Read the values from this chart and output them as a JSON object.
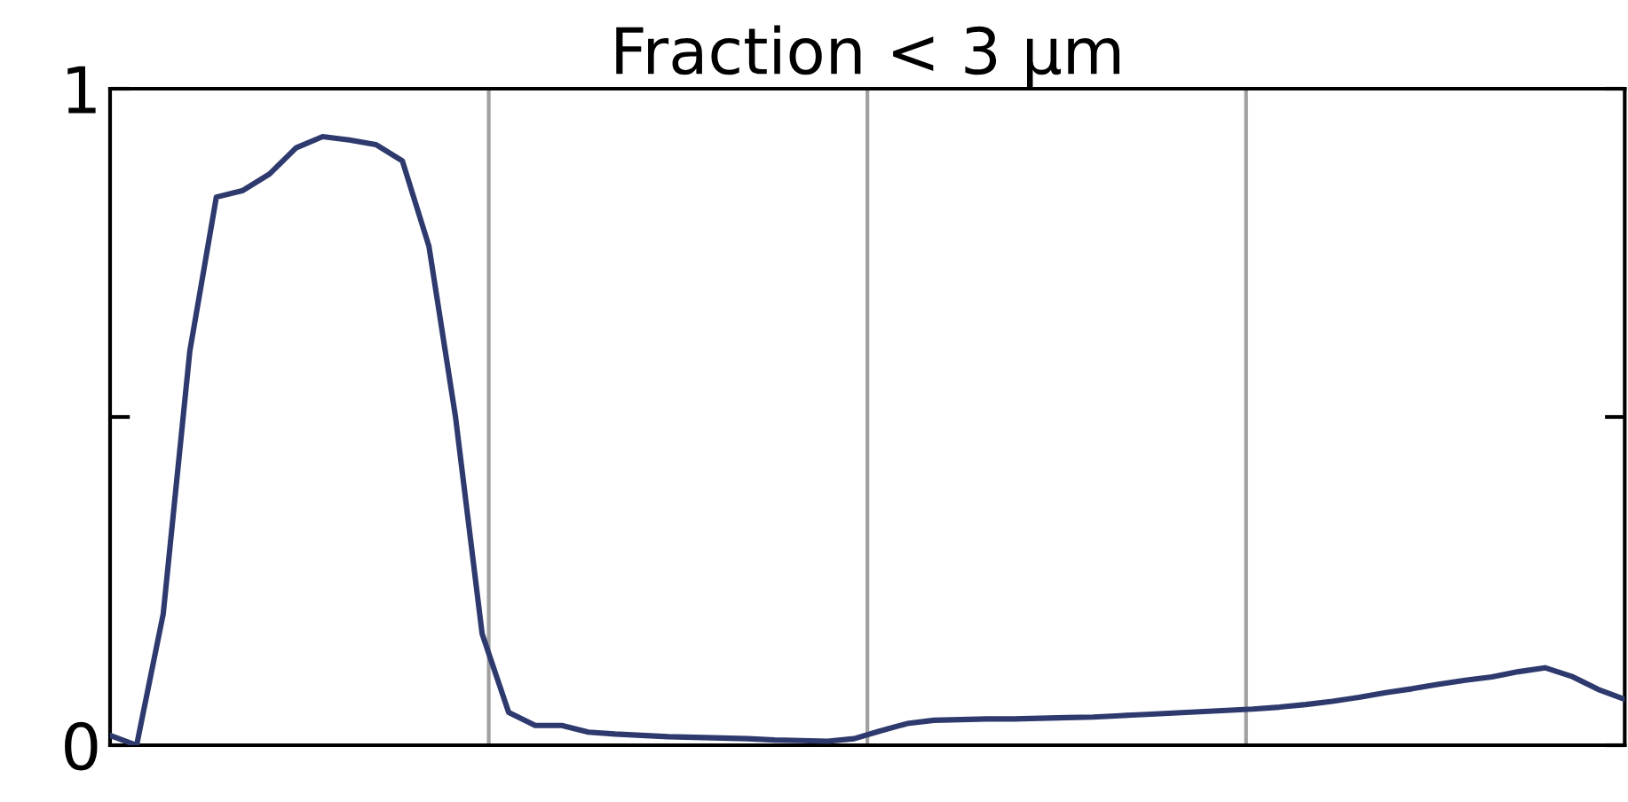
{
  "chart_data": {
    "type": "line",
    "title": "Fraction < 3 µm",
    "categories": [
      null,
      null,
      null,
      null,
      null,
      null,
      null,
      null,
      null,
      null,
      null,
      null,
      null,
      null,
      null,
      null,
      null,
      null,
      null,
      null,
      null,
      null,
      null,
      null,
      null,
      null,
      null,
      null,
      null,
      null,
      null,
      null,
      null,
      null,
      null,
      null,
      null,
      null,
      null,
      null,
      null,
      null,
      null,
      null,
      null,
      null,
      null,
      null,
      null,
      null,
      null,
      null,
      null,
      null,
      null,
      null,
      null,
      null
    ],
    "series": [
      {
        "color": "#2e3a6e",
        "values": [
          0.015,
          0.0,
          0.2,
          0.6,
          0.835,
          0.845,
          0.87,
          0.91,
          0.927,
          0.922,
          0.915,
          0.89,
          0.76,
          0.5,
          0.17,
          0.05,
          0.03,
          0.03,
          0.02,
          0.017,
          0.015,
          0.013,
          0.012,
          0.011,
          0.01,
          0.008,
          0.007,
          0.006,
          0.01,
          0.022,
          0.033,
          0.038,
          0.039,
          0.04,
          0.04,
          0.041,
          0.042,
          0.043,
          0.045,
          0.047,
          0.049,
          0.051,
          0.053,
          0.055,
          0.058,
          0.062,
          0.067,
          0.073,
          0.08,
          0.086,
          0.093,
          0.099,
          0.104,
          0.112,
          0.118,
          0.105,
          0.085,
          0.07
        ]
      }
    ],
    "ylim": [
      0,
      1
    ],
    "yticks": [
      0,
      {
        "value": 0.5,
        "label": null
      },
      1
    ],
    "tick_labels": "y",
    "grid": false,
    "legend": false,
    "marker": "none",
    "line_style": "solid"
  }
}
